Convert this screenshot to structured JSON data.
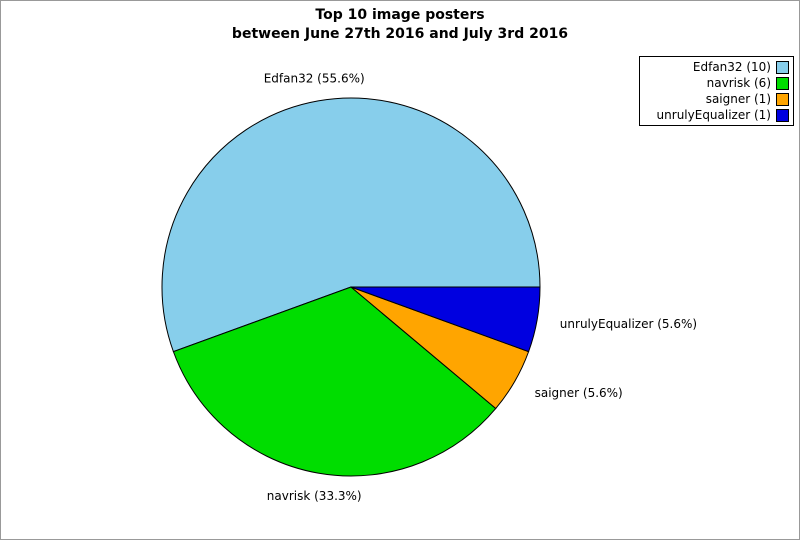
{
  "window": {
    "background": "#ffffff",
    "border_color": "#999999"
  },
  "chart_data": {
    "type": "pie",
    "title": "Top 10 image posters",
    "subtitle": "between June 27th 2016 and July 3rd 2016",
    "legend_position": "top-right",
    "direction": "counterclockwise",
    "start_angle_deg": 0,
    "outline_color": "#000000",
    "slices": [
      {
        "name": "Edfan32",
        "count": 10,
        "percent": 55.6,
        "slice_label": "Edfan32 (55.6%)",
        "legend_label": "Edfan32 (10)",
        "color": "#87CEEB"
      },
      {
        "name": "navrisk",
        "count": 6,
        "percent": 33.3,
        "slice_label": "navrisk (33.3%)",
        "legend_label": "navrisk (6)",
        "color": "#00DD00"
      },
      {
        "name": "saigner",
        "count": 1,
        "percent": 5.6,
        "slice_label": "saigner (5.6%)",
        "legend_label": "saigner (1)",
        "color": "#FFA500"
      },
      {
        "name": "unrulyEqualizer",
        "count": 1,
        "percent": 5.6,
        "slice_label": "unrulyEqualizer (5.6%)",
        "legend_label": "unrulyEqualizer (1)",
        "color": "#0000E0"
      }
    ]
  }
}
